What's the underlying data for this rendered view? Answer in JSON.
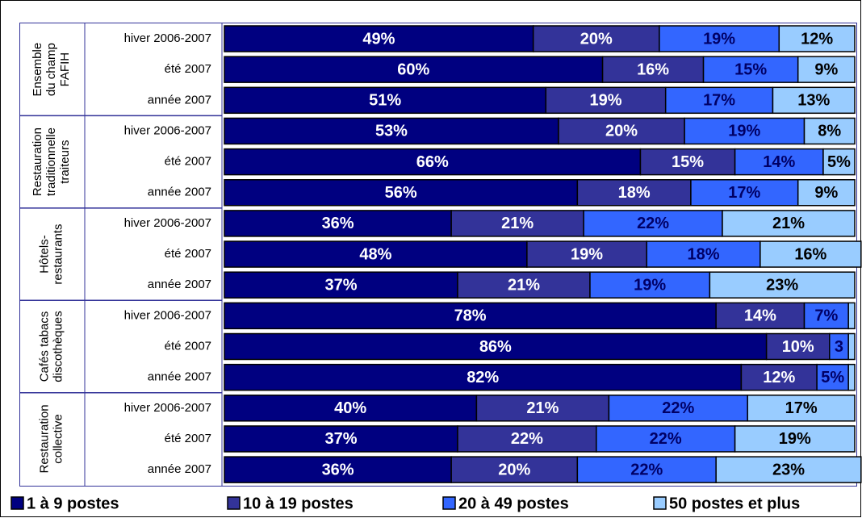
{
  "chart_data": {
    "type": "stacked-bar-horizontal",
    "groups": [
      {
        "label": [
          "Ensemble",
          "du champ",
          "FAFIH"
        ],
        "categories": [
          "hiver 2006-2007",
          "été 2007",
          "année 2007"
        ]
      },
      {
        "label": [
          "Restauration",
          "traditionnelle",
          "traiteurs"
        ],
        "categories": [
          "hiver 2006-2007",
          "été 2007",
          "année 2007"
        ]
      },
      {
        "label": [
          "Hôtels-",
          "restaurants"
        ],
        "categories": [
          "hiver 2006-2007",
          "été 2007",
          "année 2007"
        ]
      },
      {
        "label": [
          "Cafés tabacs",
          "discothèques"
        ],
        "categories": [
          "hiver 2006-2007",
          "été 2007",
          "année 2007"
        ]
      },
      {
        "label": [
          "Restauration",
          "collective"
        ],
        "categories": [
          "hiver 2006-2007",
          "été 2007",
          "année 2007"
        ]
      }
    ],
    "xlim": [
      0,
      100
    ],
    "series": [
      {
        "name": "1 à 9 postes",
        "color": "#000080",
        "label_color": "#ffffff",
        "values": [
          49,
          60,
          51,
          53,
          66,
          56,
          36,
          48,
          37,
          78,
          86,
          82,
          40,
          37,
          36
        ],
        "value_labels": [
          "49%",
          "60%",
          "51%",
          "53%",
          "66%",
          "56%",
          "36%",
          "48%",
          "37%",
          "78%",
          "86%",
          "82%",
          "40%",
          "37%",
          "36%"
        ]
      },
      {
        "name": "10 à 19 postes",
        "color": "#333399",
        "label_color": "#ffffff",
        "values": [
          20,
          16,
          19,
          20,
          15,
          18,
          21,
          19,
          21,
          14,
          10,
          12,
          21,
          22,
          20
        ],
        "value_labels": [
          "20%",
          "16%",
          "19%",
          "20%",
          "15%",
          "18%",
          "21%",
          "19%",
          "21%",
          "14%",
          "10%",
          "12%",
          "21%",
          "22%",
          "20%"
        ]
      },
      {
        "name": "20 à 49 postes",
        "color": "#3366ff",
        "label_color": "#000066",
        "values": [
          19,
          15,
          17,
          19,
          14,
          17,
          22,
          18,
          19,
          7,
          3,
          5,
          22,
          22,
          22
        ],
        "value_labels": [
          "19%",
          "15%",
          "17%",
          "19%",
          "14%",
          "17%",
          "22%",
          "18%",
          "19%",
          "7%",
          "3",
          "5%",
          "22%",
          "22%",
          "22%"
        ]
      },
      {
        "name": "50 postes et plus",
        "color": "#99ccff",
        "label_color": "#000000",
        "values": [
          12,
          9,
          13,
          8,
          5,
          9,
          21,
          16,
          23,
          1,
          1,
          1,
          17,
          19,
          23
        ],
        "value_labels": [
          "12%",
          "9%",
          "13%",
          "8%",
          "5%",
          "9%",
          "21%",
          "16%",
          "23%",
          null,
          null,
          null,
          "17%",
          "19%",
          "23%"
        ]
      }
    ]
  }
}
